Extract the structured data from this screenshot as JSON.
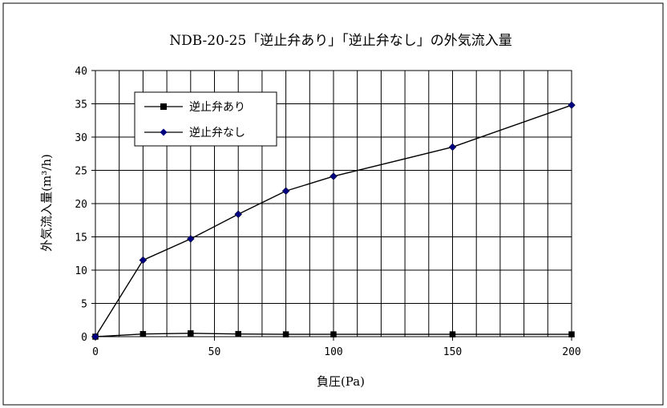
{
  "chart_data": {
    "type": "line",
    "title": "NDB-20-25「逆止弁あり」「逆止弁なし」の外気流入量",
    "xlabel": "負圧(Pa)",
    "ylabel": "外気流入量(m³/h)",
    "xlim": [
      0,
      200
    ],
    "ylim": [
      0,
      40
    ],
    "x_ticks": [
      0,
      50,
      100,
      150,
      200
    ],
    "y_ticks": [
      0,
      5,
      10,
      15,
      20,
      25,
      30,
      35,
      40
    ],
    "x_tick_labels": [
      "0",
      "50",
      "100",
      "150",
      "200"
    ],
    "y_tick_labels": [
      "0",
      "5",
      "10",
      "15",
      "20",
      "25",
      "30",
      "35",
      "40"
    ],
    "x_grid": [
      0,
      10,
      20,
      30,
      40,
      50,
      60,
      70,
      80,
      90,
      100,
      110,
      120,
      130,
      140,
      150,
      160,
      170,
      180,
      190,
      200
    ],
    "grid": true,
    "legend_position": "top-left",
    "series": [
      {
        "name": "逆止弁あり",
        "marker": "square",
        "color": "#000000",
        "x": [
          0,
          20,
          40,
          60,
          80,
          100,
          150,
          200
        ],
        "y": [
          0,
          0.4,
          0.5,
          0.4,
          0.35,
          0.35,
          0.35,
          0.35
        ]
      },
      {
        "name": "逆止弁なし",
        "marker": "diamond",
        "color": "#000080",
        "x": [
          0,
          20,
          40,
          60,
          80,
          100,
          150,
          200
        ],
        "y": [
          0,
          11.5,
          14.7,
          18.4,
          21.9,
          24.1,
          28.5,
          34.8
        ]
      }
    ]
  }
}
